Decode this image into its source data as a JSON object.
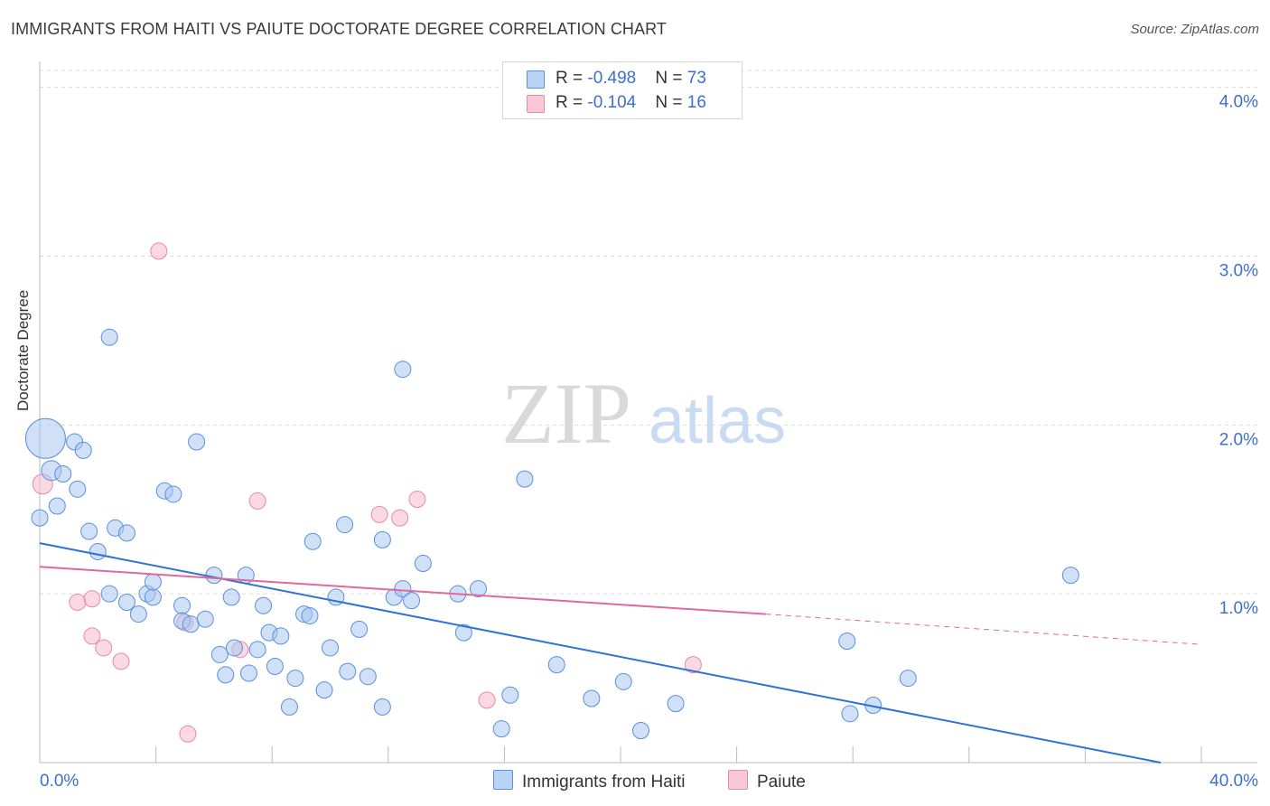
{
  "title": "IMMIGRANTS FROM HAITI VS PAIUTE DOCTORATE DEGREE CORRELATION CHART",
  "source": "Source: ZipAtlas.com",
  "watermark": {
    "zip": "ZIP",
    "atlas": "atlas"
  },
  "legend": {
    "rows": [
      {
        "r_label": "R = ",
        "r_value": "-0.498",
        "n_label": "N = ",
        "n_value": "73"
      },
      {
        "r_label": "R = ",
        "r_value": "-0.104",
        "n_label": "N = ",
        "n_value": "16"
      }
    ],
    "bottom": [
      "Immigrants from Haiti",
      "Paiute"
    ]
  },
  "colors": {
    "blue_fill": "#a9c7f0",
    "blue_stroke": "#5a8fdc",
    "blue_line": "#2f72d6",
    "pink_fill": "#f5b9cc",
    "pink_stroke": "#e58aa8",
    "pink_line": "#e0699a",
    "axis_text": "#3c6fd1",
    "grid": "#dcdcdc"
  },
  "chart_data": {
    "type": "scatter",
    "title": "IMMIGRANTS FROM HAITI VS PAIUTE DOCTORATE DEGREE CORRELATION CHART",
    "xlabel": "",
    "ylabel": "Doctorate Degree",
    "xlim": [
      0,
      40
    ],
    "ylim": [
      0,
      4.1
    ],
    "x_tick_labels": [
      "0.0%",
      "40.0%"
    ],
    "y_ticks": [
      1,
      2,
      3,
      4
    ],
    "y_tick_labels": [
      "1.0%",
      "2.0%",
      "3.0%",
      "4.0%"
    ],
    "series": [
      {
        "name": "Immigrants from Haiti",
        "r": -0.498,
        "n": 73,
        "trend": {
          "x0": 0,
          "y0": 1.3,
          "x1": 38.6,
          "y1": 0.0
        },
        "points": [
          [
            0.2,
            1.92,
            22
          ],
          [
            0.4,
            1.73,
            11
          ],
          [
            0.8,
            1.71,
            9
          ],
          [
            0.6,
            1.52,
            9
          ],
          [
            1.3,
            1.62,
            9
          ],
          [
            1.2,
            1.9,
            9
          ],
          [
            1.5,
            1.85,
            9
          ],
          [
            2.4,
            2.52,
            9
          ],
          [
            1.7,
            1.37,
            9
          ],
          [
            2.0,
            1.25,
            9
          ],
          [
            2.6,
            1.39,
            9
          ],
          [
            3.0,
            1.36,
            9
          ],
          [
            2.4,
            1.0,
            9
          ],
          [
            3.0,
            0.95,
            9
          ],
          [
            3.4,
            0.88,
            9
          ],
          [
            3.7,
            1.0,
            9
          ],
          [
            3.9,
            0.98,
            9
          ],
          [
            3.9,
            1.07,
            9
          ],
          [
            4.3,
            1.61,
            9
          ],
          [
            4.6,
            1.59,
            9
          ],
          [
            5.4,
            1.9,
            9
          ],
          [
            4.9,
            0.93,
            9
          ],
          [
            4.9,
            0.84,
            9
          ],
          [
            5.2,
            0.82,
            9
          ],
          [
            5.7,
            0.85,
            9
          ],
          [
            6.0,
            1.11,
            9
          ],
          [
            6.6,
            0.98,
            9
          ],
          [
            7.1,
            1.11,
            9
          ],
          [
            6.2,
            0.64,
            9
          ],
          [
            6.4,
            0.52,
            9
          ],
          [
            6.7,
            0.68,
            9
          ],
          [
            7.2,
            0.53,
            9
          ],
          [
            7.5,
            0.67,
            9
          ],
          [
            7.7,
            0.93,
            9
          ],
          [
            7.9,
            0.77,
            9
          ],
          [
            8.1,
            0.57,
            9
          ],
          [
            8.3,
            0.75,
            9
          ],
          [
            8.6,
            0.33,
            9
          ],
          [
            8.8,
            0.5,
            9
          ],
          [
            9.1,
            0.88,
            9
          ],
          [
            9.3,
            0.87,
            9
          ],
          [
            9.4,
            1.31,
            9
          ],
          [
            9.8,
            0.43,
            9
          ],
          [
            10.0,
            0.68,
            9
          ],
          [
            10.2,
            0.98,
            9
          ],
          [
            10.5,
            1.41,
            9
          ],
          [
            10.6,
            0.54,
            9
          ],
          [
            11.0,
            0.79,
            9
          ],
          [
            11.3,
            0.51,
            9
          ],
          [
            11.8,
            0.33,
            9
          ],
          [
            11.8,
            1.32,
            9
          ],
          [
            12.2,
            0.98,
            9
          ],
          [
            12.5,
            2.33,
            9
          ],
          [
            12.5,
            1.03,
            9
          ],
          [
            12.8,
            0.96,
            9
          ],
          [
            13.2,
            1.18,
            9
          ],
          [
            14.4,
            1.0,
            9
          ],
          [
            14.6,
            0.77,
            9
          ],
          [
            15.1,
            1.03,
            9
          ],
          [
            15.9,
            0.2,
            9
          ],
          [
            16.2,
            0.4,
            9
          ],
          [
            16.7,
            1.68,
            9
          ],
          [
            17.8,
            0.58,
            9
          ],
          [
            19.0,
            0.38,
            9
          ],
          [
            20.1,
            0.48,
            9
          ],
          [
            20.7,
            0.19,
            9
          ],
          [
            21.9,
            0.35,
            9
          ],
          [
            27.8,
            0.72,
            9
          ],
          [
            27.9,
            0.29,
            9
          ],
          [
            28.7,
            0.34,
            9
          ],
          [
            29.9,
            0.5,
            9
          ],
          [
            35.5,
            1.11,
            9
          ],
          [
            0.0,
            1.45,
            9
          ]
        ]
      },
      {
        "name": "Paiute",
        "r": -0.104,
        "n": 16,
        "trend": {
          "x0": 0,
          "y0": 1.16,
          "x1": 25.0,
          "y1": 0.88,
          "dash_x1": 40.0,
          "dash_y1": 0.7
        },
        "points": [
          [
            0.1,
            1.65,
            11
          ],
          [
            4.1,
            3.03,
            9
          ],
          [
            1.8,
            0.97,
            9
          ],
          [
            1.3,
            0.95,
            9
          ],
          [
            1.8,
            0.75,
            9
          ],
          [
            2.2,
            0.68,
            9
          ],
          [
            2.8,
            0.6,
            9
          ],
          [
            5.0,
            0.83,
            9
          ],
          [
            6.9,
            0.67,
            9
          ],
          [
            7.5,
            1.55,
            9
          ],
          [
            11.7,
            1.47,
            9
          ],
          [
            12.4,
            1.45,
            9
          ],
          [
            13.0,
            1.56,
            9
          ],
          [
            15.4,
            0.37,
            9
          ],
          [
            22.5,
            0.58,
            9
          ],
          [
            5.1,
            0.17,
            9
          ]
        ]
      }
    ]
  }
}
